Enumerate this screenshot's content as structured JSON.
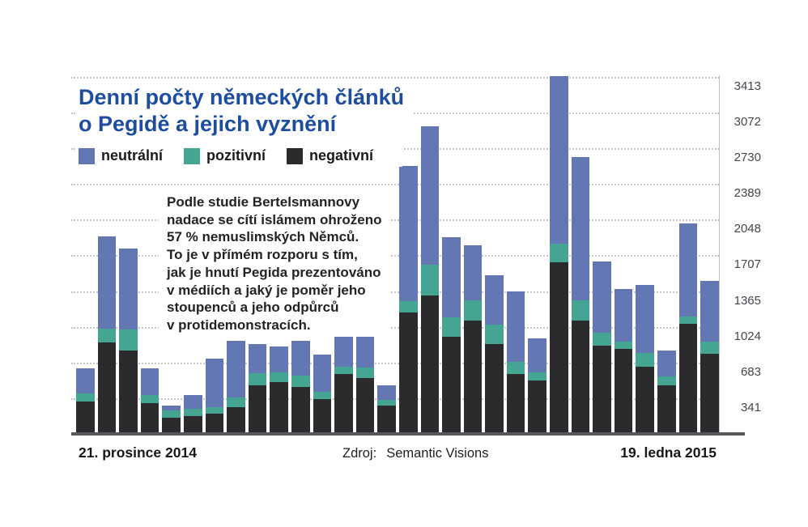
{
  "title": {
    "line1": "Denní počty německých článků",
    "line2": "o Pegidě a jejich vyznění"
  },
  "legend": {
    "items": [
      {
        "label": "neutrální",
        "color": "#6378b2"
      },
      {
        "label": "pozitivní",
        "color": "#44a593"
      },
      {
        "label": "negativní",
        "color": "#2b2b2e"
      }
    ]
  },
  "annotation": {
    "full_text": "Podle studie Bertelsmannovy nadace se cítí islámem ohroženo 57 % nemuslimských Němců. To je v přímém rozporu s tím, jak je hnutí Pegida prezentováno v médiích a jaký je poměr jeho stoupenců a jeho odpůrců v protidemonstracích.",
    "lines": [
      "Podle studie Bertelsmannovy",
      "nadace se cítí islámem ohroženo",
      "57 % nemuslimských Němců.",
      "To je v přímém rozporu s tím,",
      "jak je hnutí Pegida prezentováno",
      "v médiích a jaký je poměr jeho",
      "stoupenců a jeho odpůrců",
      "v protidemonstracích."
    ]
  },
  "x_axis": {
    "left_label": "21. prosince 2014",
    "right_label": "19. ledna 2015"
  },
  "source": {
    "label": "Zdroj:",
    "value": "Semantic Visions"
  },
  "y_axis": {
    "ticks": [
      341,
      683,
      1024,
      1365,
      1707,
      2048,
      2389,
      2730,
      3072,
      3413
    ]
  },
  "chart_data": {
    "type": "bar",
    "stacked": true,
    "title": "Denní počty německých článků o Pegidě a jejich vyznění",
    "grid": "horizontal-dotted",
    "legend_position": "top-left",
    "ylim": [
      0,
      3413
    ],
    "y_ticks": [
      341,
      683,
      1024,
      1365,
      1707,
      2048,
      2389,
      2730,
      3072,
      3413
    ],
    "x_range_labels": [
      "21. prosince 2014",
      "19. ledna 2015"
    ],
    "categories": [
      "21.12.2014",
      "22.12.2014",
      "23.12.2014",
      "24.12.2014",
      "25.12.2014",
      "26.12.2014",
      "27.12.2014",
      "28.12.2014",
      "29.12.2014",
      "30.12.2014",
      "31.12.2014",
      "1.1.2015",
      "2.1.2015",
      "3.1.2015",
      "4.1.2015",
      "5.1.2015",
      "6.1.2015",
      "7.1.2015",
      "8.1.2015",
      "9.1.2015",
      "10.1.2015",
      "11.1.2015",
      "12.1.2015",
      "13.1.2015",
      "14.1.2015",
      "15.1.2015",
      "16.1.2015",
      "17.1.2015",
      "18.1.2015",
      "19.1.2015"
    ],
    "series": [
      {
        "name": "negativní",
        "color": "#2b2b2e",
        "stack_order": "bottom",
        "values": [
          295,
          860,
          780,
          280,
          140,
          155,
          180,
          240,
          450,
          480,
          435,
          315,
          555,
          520,
          255,
          1145,
          1310,
          915,
          1070,
          845,
          555,
          495,
          1625,
          1070,
          830,
          795,
          625,
          450,
          1035,
          750
        ]
      },
      {
        "name": "pozitivní",
        "color": "#44a593",
        "stack_order": "middle",
        "values": [
          75,
          130,
          200,
          75,
          70,
          70,
          60,
          95,
          115,
          95,
          110,
          75,
          70,
          100,
          55,
          110,
          295,
          185,
          195,
          185,
          115,
          75,
          180,
          195,
          125,
          75,
          130,
          85,
          70,
          115
        ]
      },
      {
        "name": "neutrální",
        "color": "#6378b2",
        "stack_order": "top",
        "values": [
          240,
          880,
          780,
          255,
          45,
          130,
          465,
          540,
          280,
          245,
          330,
          350,
          450,
          300,
          140,
          1290,
          1320,
          765,
          520,
          470,
          675,
          330,
          1600,
          1370,
          675,
          500,
          655,
          245,
          895,
          580
        ]
      }
    ]
  }
}
